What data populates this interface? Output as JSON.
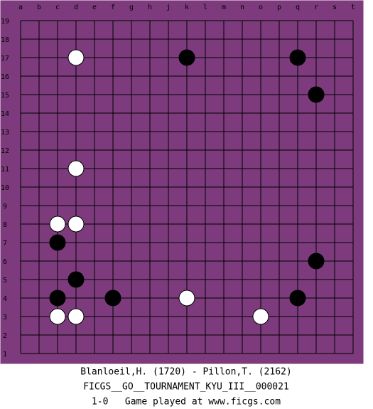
{
  "board": {
    "columns": [
      "a",
      "b",
      "c",
      "d",
      "e",
      "f",
      "g",
      "h",
      "j",
      "k",
      "l",
      "m",
      "n",
      "o",
      "p",
      "q",
      "r",
      "s",
      "t"
    ],
    "rows": [
      "19",
      "18",
      "17",
      "16",
      "15",
      "14",
      "13",
      "12",
      "11",
      "10",
      "9",
      "8",
      "7",
      "6",
      "5",
      "4",
      "3",
      "2",
      "1"
    ],
    "stones": [
      {
        "color": "white",
        "col": 3,
        "row": 2
      },
      {
        "color": "white",
        "col": 3,
        "row": 8
      },
      {
        "color": "white",
        "col": 2,
        "row": 11
      },
      {
        "color": "white",
        "col": 3,
        "row": 11
      },
      {
        "color": "white",
        "col": 2,
        "row": 16
      },
      {
        "color": "white",
        "col": 3,
        "row": 16
      },
      {
        "color": "white",
        "col": 9,
        "row": 15
      },
      {
        "color": "white",
        "col": 13,
        "row": 16
      },
      {
        "color": "black",
        "col": 9,
        "row": 2
      },
      {
        "color": "black",
        "col": 15,
        "row": 2
      },
      {
        "color": "black",
        "col": 16,
        "row": 4
      },
      {
        "color": "black",
        "col": 2,
        "row": 12
      },
      {
        "color": "black",
        "col": 16,
        "row": 13
      },
      {
        "color": "black",
        "col": 3,
        "row": 14
      },
      {
        "color": "black",
        "col": 2,
        "row": 15
      },
      {
        "color": "black",
        "col": 5,
        "row": 15
      },
      {
        "color": "black",
        "col": 15,
        "row": 15
      }
    ]
  },
  "footer": {
    "players": "Blanloeil,H. (1720) - Pillon,T. (2162)",
    "event": "FICGS__GO__TOURNAMENT_KYU_III__000021",
    "result": "1-0   Game played at www.ficgs.com"
  }
}
